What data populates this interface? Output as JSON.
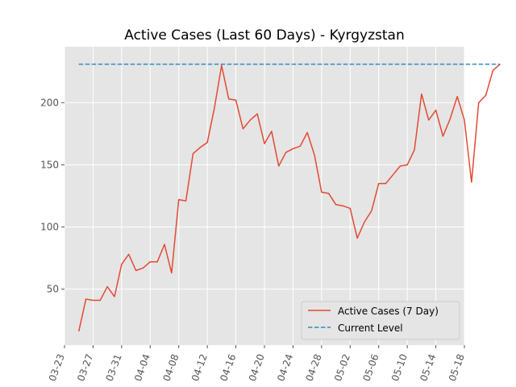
{
  "chart_data": {
    "type": "line",
    "title": "Active Cases (Last 60 Days) - Kyrgyzstan",
    "xlabel": "",
    "ylabel": "",
    "start_date": "2020-03-25",
    "x_ticks": [
      "03-23",
      "03-27",
      "03-31",
      "04-04",
      "04-08",
      "04-12",
      "04-16",
      "04-20",
      "04-24",
      "04-28",
      "05-02",
      "05-06",
      "05-10",
      "05-14",
      "05-18"
    ],
    "y_ticks": [
      50,
      100,
      150,
      200
    ],
    "xlim": [
      "2020-03-23",
      "2020-05-18"
    ],
    "ylim": [
      5,
      245
    ],
    "grid": true,
    "legend_position": "bottom-right",
    "series": [
      {
        "name": "Active Cases (7 Day)",
        "color": "#e24a33",
        "style": "solid",
        "values": [
          16,
          42,
          41,
          41,
          52,
          44,
          70,
          78,
          65,
          67,
          72,
          72,
          86,
          63,
          122,
          121,
          159,
          164,
          168,
          196,
          230,
          203,
          202,
          179,
          186,
          191,
          167,
          177,
          149,
          160,
          163,
          165,
          176,
          158,
          128,
          127,
          118,
          117,
          115,
          91,
          104,
          113,
          135,
          135,
          142,
          149,
          150,
          162,
          207,
          186,
          194,
          173,
          187,
          205,
          186,
          136,
          200,
          206,
          226,
          231
        ]
      },
      {
        "name": "Current Level",
        "color": "#348abd",
        "style": "dashed",
        "value": 231
      }
    ]
  }
}
